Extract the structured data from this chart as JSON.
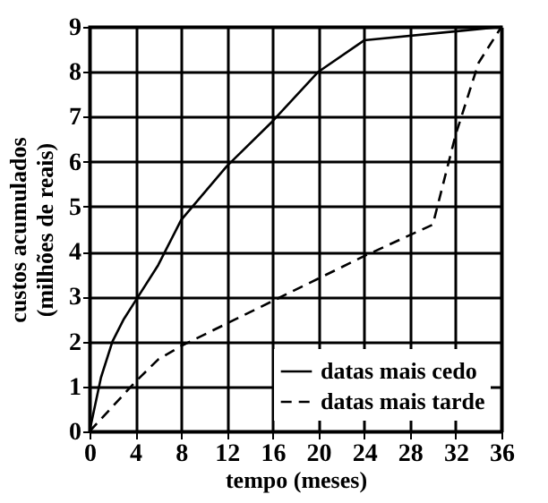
{
  "chart_data": {
    "type": "line",
    "xlabel": "tempo (meses)",
    "ylabel": "custos acumulados\n(milhões de reais)",
    "xlim": [
      0,
      36
    ],
    "xticks": [
      0,
      4,
      8,
      12,
      16,
      20,
      24,
      28,
      32,
      36
    ],
    "ylim": [
      0,
      9
    ],
    "yticks": [
      0,
      1,
      2,
      3,
      4,
      5,
      6,
      7,
      8,
      9
    ],
    "grid": true,
    "legend": "bottom right",
    "series": [
      {
        "name": "datas mais cedo",
        "color": "#000000",
        "line_style": "solid",
        "x": [
          0,
          1,
          2,
          3,
          4,
          6,
          8,
          12,
          16,
          20,
          24,
          36
        ],
        "values": [
          0,
          1.2,
          2,
          2.5,
          2.9,
          3.7,
          4.7,
          5.9,
          6.9,
          8,
          8.7,
          9
        ]
      },
      {
        "name": "datas mais tarde",
        "color": "#000000",
        "line_style": "dashed",
        "x": [
          0,
          4,
          6,
          8,
          12,
          16,
          20,
          24,
          30,
          32,
          34,
          36
        ],
        "values": [
          0,
          1.1,
          1.6,
          1.9,
          2.4,
          2.9,
          3.4,
          3.9,
          4.6,
          6.6,
          8.2,
          9
        ]
      }
    ]
  }
}
